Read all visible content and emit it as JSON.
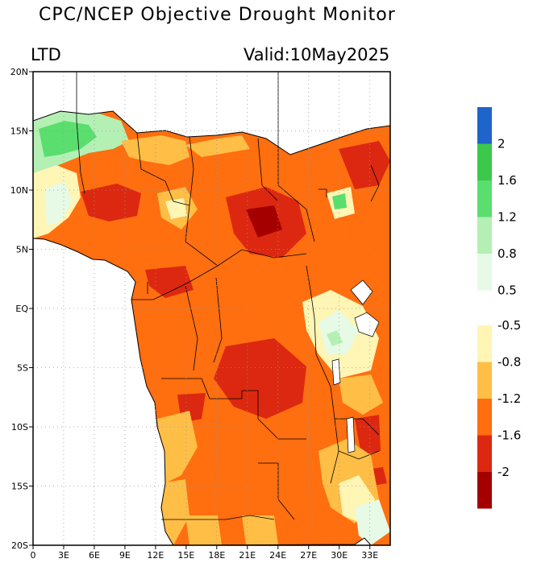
{
  "header": {
    "title": "CPC/NCEP Objective Drought Monitor",
    "product": "LTD",
    "valid": "Valid:10May2025"
  },
  "map": {
    "lon_range": [
      0,
      35
    ],
    "lat_range": [
      -20,
      20
    ],
    "lon_ticks": [
      {
        "v": 0,
        "label": "0"
      },
      {
        "v": 3,
        "label": "3E"
      },
      {
        "v": 6,
        "label": "6E"
      },
      {
        "v": 9,
        "label": "9E"
      },
      {
        "v": 12,
        "label": "12E"
      },
      {
        "v": 15,
        "label": "15E"
      },
      {
        "v": 18,
        "label": "18E"
      },
      {
        "v": 21,
        "label": "21E"
      },
      {
        "v": 24,
        "label": "24E"
      },
      {
        "v": 27,
        "label": "27E"
      },
      {
        "v": 30,
        "label": "30E"
      },
      {
        "v": 33,
        "label": "33E"
      }
    ],
    "lat_ticks": [
      {
        "v": 20,
        "label": "20N"
      },
      {
        "v": 15,
        "label": "15N"
      },
      {
        "v": 10,
        "label": "10N"
      },
      {
        "v": 5,
        "label": "5N"
      },
      {
        "v": 0,
        "label": "EQ"
      },
      {
        "v": -5,
        "label": "5S"
      },
      {
        "v": -10,
        "label": "10S"
      },
      {
        "v": -15,
        "label": "15S"
      },
      {
        "v": -20,
        "label": "20S"
      }
    ],
    "gridlines": true,
    "colors": {
      "ocean": "#ffffff",
      "very_wet": "#1f64c8",
      "wet_2": "#3cc84a",
      "wet_16": "#5ade6e",
      "wet_12": "#b4f0b4",
      "wet_08": "#e6fae6",
      "dry_05": "#fff5b4",
      "dry_08": "#ffbe46",
      "dry_12": "#ff6e0f",
      "dry_16": "#dc2810",
      "dry_2": "#a50000"
    }
  },
  "colorbar": {
    "wet": [
      {
        "color": "#1f64c8"
      },
      {
        "color": "#3cc84a",
        "label": "2"
      },
      {
        "color": "#5ade6e",
        "label": "1.6"
      },
      {
        "color": "#b4f0b4",
        "label": "1.2"
      },
      {
        "color": "#e6fae6",
        "label": "0.8"
      },
      {
        "label": "0.5"
      }
    ],
    "dry": [
      {
        "color": "#fff5b4",
        "label": "-0.5"
      },
      {
        "color": "#ffbe46",
        "label": "-0.8"
      },
      {
        "color": "#ff6e0f",
        "label": "-1.2"
      },
      {
        "color": "#dc2810",
        "label": "-1.6"
      },
      {
        "color": "#a50000",
        "label": "-2"
      }
    ]
  }
}
